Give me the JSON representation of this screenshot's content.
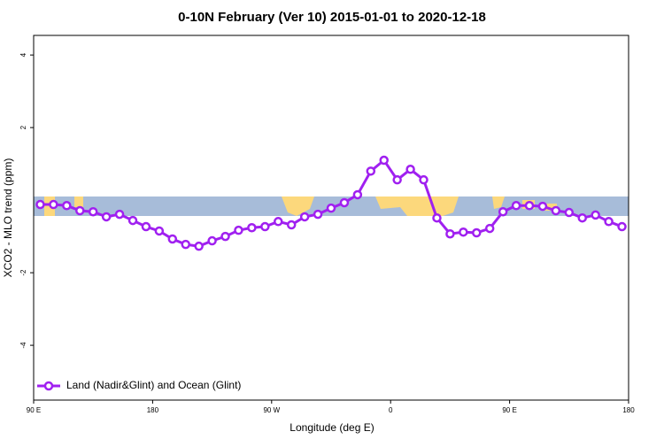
{
  "chart_data": {
    "type": "line",
    "title": "0-10N February (Ver 10)   2015-01-01 to 2020-12-18",
    "x_label": "Longitude (deg E)",
    "y_label": "XCO2 - MLO trend (ppm)",
    "x": [
      95,
      105,
      115,
      125,
      135,
      145,
      155,
      165,
      175,
      185,
      195,
      205,
      215,
      225,
      235,
      245,
      255,
      265,
      275,
      285,
      295,
      305,
      315,
      325,
      335,
      345,
      355,
      365,
      375,
      385,
      395,
      405,
      415,
      425,
      435,
      445,
      455,
      465,
      475,
      485,
      495,
      505,
      515,
      525,
      535
    ],
    "series": [
      {
        "name": "Land (Nadir&Glint) and Ocean (Glint)",
        "color": "#a020f0",
        "values": [
          -0.12,
          -0.12,
          -0.15,
          -0.29,
          -0.32,
          -0.46,
          -0.39,
          -0.56,
          -0.73,
          -0.85,
          -1.07,
          -1.22,
          -1.27,
          -1.12,
          -1.0,
          -0.83,
          -0.76,
          -0.73,
          -0.59,
          -0.68,
          -0.46,
          -0.39,
          -0.22,
          -0.07,
          0.15,
          0.8,
          1.1,
          0.56,
          0.85,
          0.56,
          -0.49,
          -0.93,
          -0.88,
          -0.9,
          -0.78,
          -0.32,
          -0.15,
          -0.15,
          -0.17,
          -0.29,
          -0.34,
          -0.49,
          -0.41,
          -0.59,
          -0.73
        ]
      }
    ],
    "xlim": [
      90,
      540
    ],
    "xticks": [
      {
        "value": 90,
        "label": "90 E"
      },
      180,
      {
        "value": 270,
        "label": "90 W"
      },
      {
        "value": 360,
        "label": "0"
      },
      {
        "value": 450,
        "label": "90 E"
      },
      {
        "value": 540,
        "label": "180"
      }
    ],
    "ylim": [
      -5.51,
      4.54
    ],
    "yticks": [
      -4,
      -2,
      2,
      4
    ],
    "legend": "bottom-left"
  }
}
